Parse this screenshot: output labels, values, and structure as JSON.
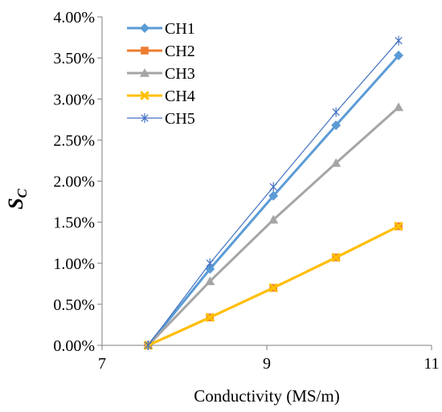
{
  "chart_data": {
    "type": "line",
    "xlabel": "Conductivity (MS/m)",
    "ylabel": {
      "main": "S",
      "sub": "C"
    },
    "xlim": [
      7,
      11
    ],
    "ylim": [
      0,
      4
    ],
    "x_ticks": [
      7,
      9,
      11
    ],
    "y_ticks": [
      0,
      0.5,
      1,
      1.5,
      2,
      2.5,
      3,
      3.5,
      4
    ],
    "y_tick_labels": [
      "0.00%",
      "0.50%",
      "1.00%",
      "1.50%",
      "2.00%",
      "2.50%",
      "3.00%",
      "3.50%",
      "4.00%"
    ],
    "legend_position": "top-left",
    "grid": false,
    "series": [
      {
        "name": "CH1",
        "color": "#5B9BD5",
        "marker": "diamond",
        "x": [
          7.56,
          8.31,
          9.08,
          9.84,
          10.6
        ],
        "y": [
          0,
          0.93,
          1.82,
          2.68,
          3.53
        ]
      },
      {
        "name": "CH2",
        "color": "#ED7D31",
        "marker": "square",
        "x": [
          7.56,
          8.31,
          9.08,
          9.84,
          10.6
        ],
        "y": [
          0,
          0.34,
          0.7,
          1.07,
          1.45
        ]
      },
      {
        "name": "CH3",
        "color": "#A5A5A5",
        "marker": "triangle",
        "x": [
          7.56,
          8.31,
          9.08,
          9.84,
          10.6
        ],
        "y": [
          0,
          0.78,
          1.53,
          2.22,
          2.9
        ]
      },
      {
        "name": "CH4",
        "color": "#FFC000",
        "marker": "x",
        "x": [
          7.56,
          8.31,
          9.08,
          9.84,
          10.6
        ],
        "y": [
          0,
          0.34,
          0.7,
          1.07,
          1.45
        ]
      },
      {
        "name": "CH5",
        "color": "#4472C4",
        "marker": "star",
        "x": [
          7.56,
          8.31,
          9.08,
          9.84,
          10.6
        ],
        "y": [
          0,
          1.0,
          1.93,
          2.84,
          3.71
        ]
      }
    ]
  }
}
